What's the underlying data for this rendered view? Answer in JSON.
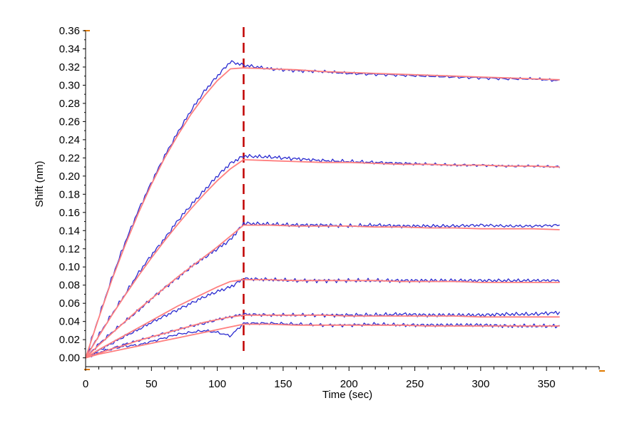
{
  "chart_data": {
    "type": "line",
    "title": "",
    "xlabel": "Time (sec)",
    "ylabel": "Shift (nm)",
    "xlim": [
      0,
      390
    ],
    "ylim": [
      -0.005,
      0.36
    ],
    "x_ticks": [
      0,
      50,
      100,
      150,
      200,
      250,
      300,
      350
    ],
    "x_tick_labels": [
      "0",
      "50",
      "100",
      "150",
      "200",
      "250",
      "300",
      "350"
    ],
    "y_ticks": [
      0,
      0.02,
      0.04,
      0.06,
      0.08,
      0.1,
      0.12,
      0.14,
      0.16,
      0.18,
      0.2,
      0.22,
      0.24,
      0.26,
      0.28,
      0.3,
      0.32,
      0.34,
      0.36
    ],
    "y_tick_labels": [
      "0.00",
      "0.02",
      "0.04",
      "0.06",
      "0.08",
      "0.10",
      "0.12",
      "0.14",
      "0.16",
      "0.18",
      "0.20",
      "0.22",
      "0.24",
      "0.26",
      "0.28",
      "0.30",
      "0.32",
      "0.34",
      "0.36"
    ],
    "dissociation_start_x": 120,
    "grid": false,
    "colors": {
      "data": "#2a2ad0",
      "fit": "#ff7f7f",
      "divider": "#c00000",
      "axis_marker": "#e07a00"
    },
    "series": [
      {
        "role": "data",
        "x": [
          0,
          10,
          20,
          30,
          40,
          50,
          60,
          70,
          80,
          90,
          100,
          110,
          120,
          140,
          160,
          180,
          200,
          220,
          240,
          260,
          280,
          300,
          320,
          340,
          360
        ],
        "y": [
          0.0,
          0.045,
          0.088,
          0.127,
          0.162,
          0.193,
          0.222,
          0.248,
          0.272,
          0.293,
          0.31,
          0.326,
          0.322,
          0.318,
          0.316,
          0.315,
          0.313,
          0.312,
          0.311,
          0.31,
          0.309,
          0.308,
          0.307,
          0.307,
          0.305
        ]
      },
      {
        "role": "fit",
        "x": [
          0,
          10,
          20,
          30,
          40,
          50,
          60,
          70,
          80,
          90,
          100,
          110,
          120,
          140,
          160,
          180,
          200,
          220,
          240,
          260,
          280,
          300,
          320,
          340,
          360
        ],
        "y": [
          0.0,
          0.044,
          0.086,
          0.124,
          0.159,
          0.191,
          0.22,
          0.245,
          0.268,
          0.288,
          0.305,
          0.318,
          0.319,
          0.318,
          0.317,
          0.315,
          0.314,
          0.313,
          0.312,
          0.311,
          0.31,
          0.309,
          0.308,
          0.307,
          0.306
        ]
      },
      {
        "role": "data",
        "x": [
          0,
          10,
          20,
          30,
          40,
          50,
          60,
          70,
          80,
          90,
          100,
          110,
          120,
          140,
          160,
          180,
          200,
          220,
          240,
          260,
          280,
          300,
          320,
          340,
          360
        ],
        "y": [
          0.0,
          0.025,
          0.048,
          0.07,
          0.093,
          0.113,
          0.131,
          0.151,
          0.168,
          0.184,
          0.2,
          0.214,
          0.222,
          0.221,
          0.219,
          0.217,
          0.216,
          0.215,
          0.214,
          0.213,
          0.212,
          0.212,
          0.211,
          0.211,
          0.21
        ]
      },
      {
        "role": "fit",
        "x": [
          0,
          10,
          20,
          30,
          40,
          50,
          60,
          70,
          80,
          90,
          100,
          110,
          120,
          140,
          160,
          180,
          200,
          220,
          240,
          260,
          280,
          300,
          320,
          340,
          360
        ],
        "y": [
          0.0,
          0.024,
          0.047,
          0.069,
          0.09,
          0.11,
          0.129,
          0.147,
          0.164,
          0.18,
          0.195,
          0.208,
          0.218,
          0.217,
          0.216,
          0.215,
          0.215,
          0.214,
          0.213,
          0.213,
          0.212,
          0.212,
          0.211,
          0.211,
          0.21
        ]
      },
      {
        "role": "data",
        "x": [
          0,
          10,
          20,
          30,
          40,
          50,
          60,
          70,
          80,
          90,
          100,
          110,
          120,
          140,
          160,
          180,
          200,
          220,
          240,
          260,
          280,
          300,
          320,
          340,
          360
        ],
        "y": [
          0.0,
          0.015,
          0.028,
          0.04,
          0.052,
          0.065,
          0.077,
          0.088,
          0.1,
          0.11,
          0.12,
          0.13,
          0.148,
          0.147,
          0.146,
          0.146,
          0.145,
          0.146,
          0.145,
          0.145,
          0.145,
          0.146,
          0.145,
          0.145,
          0.146
        ]
      },
      {
        "role": "fit",
        "x": [
          0,
          10,
          20,
          30,
          40,
          50,
          60,
          70,
          80,
          90,
          100,
          110,
          120,
          140,
          160,
          180,
          200,
          220,
          240,
          260,
          280,
          300,
          320,
          340,
          360
        ],
        "y": [
          0.0,
          0.014,
          0.027,
          0.04,
          0.053,
          0.065,
          0.077,
          0.089,
          0.1,
          0.111,
          0.122,
          0.134,
          0.146,
          0.146,
          0.145,
          0.145,
          0.145,
          0.144,
          0.144,
          0.143,
          0.143,
          0.142,
          0.142,
          0.142,
          0.141
        ]
      },
      {
        "role": "data",
        "x": [
          0,
          10,
          20,
          30,
          40,
          50,
          60,
          70,
          80,
          90,
          100,
          110,
          120,
          140,
          160,
          180,
          200,
          220,
          240,
          260,
          280,
          300,
          320,
          340,
          360
        ],
        "y": [
          0.0,
          0.008,
          0.016,
          0.024,
          0.031,
          0.039,
          0.046,
          0.053,
          0.06,
          0.067,
          0.073,
          0.078,
          0.087,
          0.086,
          0.085,
          0.085,
          0.085,
          0.085,
          0.085,
          0.085,
          0.085,
          0.085,
          0.085,
          0.085,
          0.085
        ]
      },
      {
        "role": "fit",
        "x": [
          0,
          10,
          20,
          30,
          40,
          50,
          60,
          70,
          80,
          90,
          100,
          110,
          120,
          140,
          160,
          180,
          200,
          220,
          240,
          260,
          280,
          300,
          320,
          340,
          360
        ],
        "y": [
          0.0,
          0.009,
          0.017,
          0.025,
          0.033,
          0.041,
          0.049,
          0.057,
          0.064,
          0.071,
          0.078,
          0.084,
          0.086,
          0.086,
          0.085,
          0.085,
          0.085,
          0.085,
          0.084,
          0.084,
          0.084,
          0.083,
          0.083,
          0.083,
          0.083
        ]
      },
      {
        "role": "data",
        "x": [
          0,
          10,
          20,
          30,
          40,
          50,
          60,
          70,
          80,
          90,
          100,
          110,
          120,
          140,
          160,
          180,
          200,
          220,
          240,
          260,
          280,
          300,
          320,
          340,
          360
        ],
        "y": [
          0.0,
          0.005,
          0.01,
          0.015,
          0.019,
          0.023,
          0.027,
          0.031,
          0.035,
          0.038,
          0.042,
          0.045,
          0.048,
          0.047,
          0.047,
          0.047,
          0.047,
          0.047,
          0.048,
          0.047,
          0.047,
          0.047,
          0.048,
          0.048,
          0.05
        ]
      },
      {
        "role": "fit",
        "x": [
          0,
          10,
          20,
          30,
          40,
          50,
          60,
          70,
          80,
          90,
          100,
          110,
          120,
          140,
          160,
          180,
          200,
          220,
          240,
          260,
          280,
          300,
          320,
          340,
          360
        ],
        "y": [
          0.0,
          0.005,
          0.01,
          0.014,
          0.019,
          0.023,
          0.027,
          0.031,
          0.035,
          0.039,
          0.042,
          0.045,
          0.047,
          0.047,
          0.047,
          0.047,
          0.046,
          0.046,
          0.046,
          0.046,
          0.046,
          0.045,
          0.045,
          0.045,
          0.045
        ]
      },
      {
        "role": "data",
        "x": [
          0,
          10,
          20,
          30,
          40,
          50,
          60,
          70,
          80,
          90,
          100,
          110,
          120,
          140,
          160,
          180,
          200,
          220,
          240,
          260,
          280,
          300,
          320,
          340,
          360
        ],
        "y": [
          0.0,
          0.006,
          0.01,
          0.013,
          0.014,
          0.018,
          0.022,
          0.026,
          0.028,
          0.03,
          0.028,
          0.024,
          0.038,
          0.038,
          0.037,
          0.036,
          0.036,
          0.037,
          0.036,
          0.036,
          0.036,
          0.036,
          0.035,
          0.035,
          0.035
        ]
      },
      {
        "role": "fit",
        "x": [
          0,
          10,
          20,
          30,
          40,
          50,
          60,
          70,
          80,
          90,
          100,
          110,
          120,
          140,
          160,
          180,
          200,
          220,
          240,
          260,
          280,
          300,
          320,
          340,
          360
        ],
        "y": [
          0.0,
          0.004,
          0.007,
          0.01,
          0.013,
          0.016,
          0.019,
          0.022,
          0.025,
          0.028,
          0.031,
          0.034,
          0.037,
          0.037,
          0.036,
          0.036,
          0.036,
          0.036,
          0.036,
          0.035,
          0.035,
          0.035,
          0.035,
          0.035,
          0.035
        ]
      }
    ]
  }
}
